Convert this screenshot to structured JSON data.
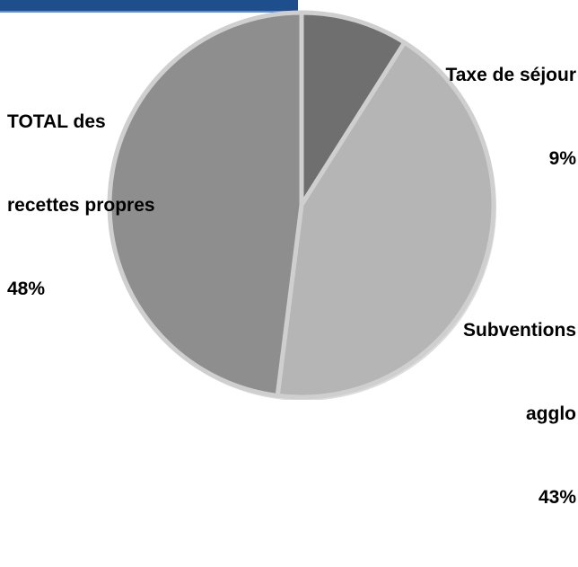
{
  "chart_data": {
    "type": "pie",
    "title": "",
    "slices": [
      {
        "category": "Taxe de séjour",
        "value": 9,
        "label_line1": "Taxe de séjour",
        "label_line2": "9%",
        "color": "#6f6f6f"
      },
      {
        "category": "Subventions agglo",
        "value": 43,
        "label_line1": "Subventions",
        "label_line2": "agglo",
        "label_line3": "43%",
        "color": "#b5b5b5"
      },
      {
        "category": "TOTAL des recettes propres",
        "value": 48,
        "label_line1": "TOTAL des",
        "label_line2": "recettes propres",
        "label_line3": "48%",
        "color": "#8e8e8e"
      }
    ],
    "legend": "none",
    "start_angle_deg": 0,
    "direction": "clockwise"
  },
  "colors": {
    "title_bar": "#1f4e8c",
    "slice_border": "#cfcfcf"
  }
}
